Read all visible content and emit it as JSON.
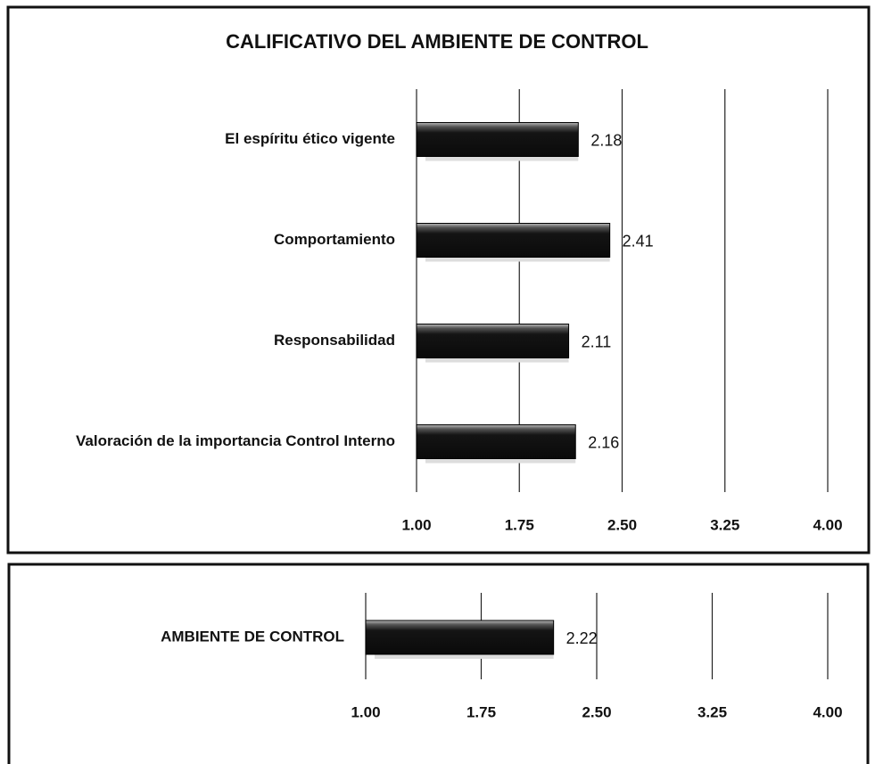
{
  "chart_data": [
    {
      "type": "bar",
      "orientation": "horizontal",
      "title": "CALIFICATIVO DEL AMBIENTE DE CONTROL",
      "categories": [
        "El espíritu ético vigente",
        "Comportamiento",
        "Responsabilidad",
        "Valoración de la importancia Control Interno"
      ],
      "values": [
        2.18,
        2.41,
        2.11,
        2.16
      ],
      "color": "#141414",
      "xlim": [
        1,
        4
      ],
      "xticks": [
        {
          "value": 1,
          "label": "1.00"
        },
        {
          "value": 1.75,
          "label": "1.75"
        },
        {
          "value": 2.5,
          "label": "2.50"
        },
        {
          "value": 3.25,
          "label": "3.25"
        },
        {
          "value": 4,
          "label": "4.00"
        }
      ],
      "grid": true
    },
    {
      "type": "bar",
      "orientation": "horizontal",
      "categories": [
        "AMBIENTE DE CONTROL"
      ],
      "values": [
        2.22
      ],
      "color": "#141414",
      "xlim": [
        1,
        4
      ],
      "xticks": [
        {
          "value": 1,
          "label": "1.00"
        },
        {
          "value": 1.75,
          "label": "1.75"
        },
        {
          "value": 2.5,
          "label": "2.50"
        },
        {
          "value": 3.25,
          "label": "3.25"
        },
        {
          "value": 4,
          "label": "4.00"
        }
      ],
      "grid": true
    }
  ]
}
